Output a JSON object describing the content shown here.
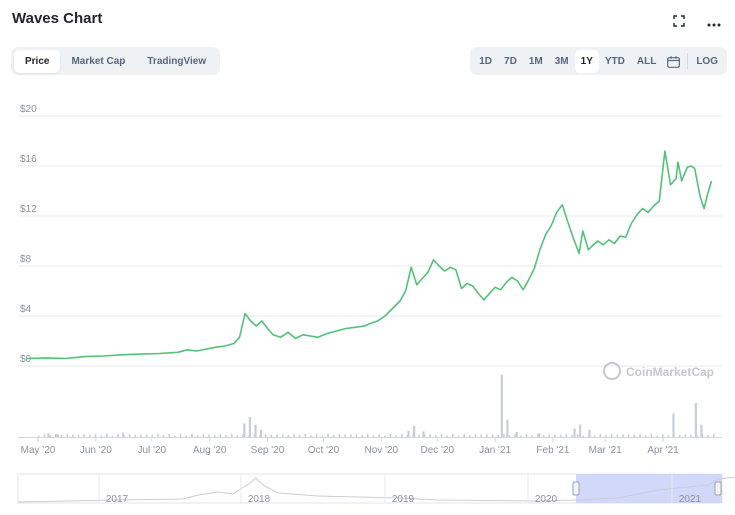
{
  "header": {
    "title": "Waves Chart",
    "expand_icon": "expand-icon",
    "more_icon": "more-icon"
  },
  "tabs": [
    {
      "label": "Price",
      "active": true
    },
    {
      "label": "Market Cap",
      "active": false
    },
    {
      "label": "TradingView",
      "active": false
    }
  ],
  "ranges": [
    {
      "label": "1D",
      "active": false
    },
    {
      "label": "7D",
      "active": false
    },
    {
      "label": "1M",
      "active": false
    },
    {
      "label": "3M",
      "active": false
    },
    {
      "label": "1Y",
      "active": true
    },
    {
      "label": "YTD",
      "active": false
    },
    {
      "label": "ALL",
      "active": false
    }
  ],
  "log_label": "LOG",
  "watermark": "CoinMarketCap",
  "colors": {
    "line": "#53c179",
    "grid": "#e6e8eb",
    "volume": "#c8cdd8",
    "brush": "#c6cef7",
    "text": "#8a919e"
  },
  "chart_data": {
    "type": "line",
    "ylabel_ticks": [
      "$0",
      "$4",
      "$8",
      "$12",
      "$16",
      "$20"
    ],
    "ylim": [
      0,
      20
    ],
    "xlim": [
      0,
      365
    ],
    "x_ticks": [
      {
        "label": "May '20",
        "x": 0
      },
      {
        "label": "Jun '20",
        "x": 31
      },
      {
        "label": "Jul '20",
        "x": 61
      },
      {
        "label": "Aug '20",
        "x": 92
      },
      {
        "label": "Sep '20",
        "x": 123
      },
      {
        "label": "Oct '20",
        "x": 153
      },
      {
        "label": "Nov '20",
        "x": 184
      },
      {
        "label": "Dec '20",
        "x": 214
      },
      {
        "label": "Jan '21",
        "x": 245
      },
      {
        "label": "Feb '21",
        "x": 276
      },
      {
        "label": "Mar '21",
        "x": 304
      },
      {
        "label": "Apr '21",
        "x": 335
      }
    ],
    "series": [
      {
        "x": [
          -6,
          5,
          15,
          25,
          35,
          45,
          55,
          65,
          75,
          80,
          85,
          90,
          95,
          100,
          105,
          108,
          111,
          114,
          117,
          120,
          123,
          126,
          130,
          134,
          138,
          142,
          146,
          150,
          155,
          160,
          165,
          170,
          175,
          178,
          182,
          186,
          190,
          194,
          197,
          200,
          203,
          206,
          209,
          212,
          215,
          218,
          221,
          224,
          227,
          230,
          233,
          236,
          239,
          242,
          245,
          248,
          251,
          254,
          257,
          260,
          263,
          266,
          269,
          272,
          275,
          278,
          281,
          284,
          287,
          290,
          292,
          295,
          297,
          300,
          303,
          306,
          309,
          312,
          315,
          318,
          321,
          324,
          327,
          330,
          333,
          336,
          339,
          342,
          343,
          345,
          346,
          348,
          350,
          352,
          355,
          357,
          359,
          361
        ],
        "y": [
          0.6,
          0.65,
          0.6,
          0.75,
          0.8,
          0.9,
          0.95,
          1.0,
          1.1,
          1.3,
          1.2,
          1.35,
          1.5,
          1.6,
          1.8,
          2.3,
          4.2,
          3.6,
          3.2,
          3.6,
          3.0,
          2.5,
          2.3,
          2.7,
          2.2,
          2.5,
          2.4,
          2.3,
          2.6,
          2.8,
          3.0,
          3.1,
          3.2,
          3.4,
          3.6,
          4.0,
          4.6,
          5.2,
          6.0,
          7.9,
          6.5,
          7.0,
          7.5,
          8.5,
          8.0,
          7.6,
          7.9,
          7.7,
          6.2,
          6.6,
          6.4,
          5.8,
          5.3,
          5.8,
          6.3,
          6.1,
          6.7,
          7.1,
          6.8,
          6.1,
          6.9,
          7.8,
          9.3,
          10.5,
          11.2,
          12.3,
          12.9,
          11.5,
          10.2,
          9.0,
          10.8,
          9.3,
          9.6,
          10.0,
          9.7,
          10.1,
          9.8,
          10.4,
          10.3,
          11.4,
          12.1,
          12.6,
          12.3,
          12.8,
          13.2,
          17.2,
          14.5,
          15.0,
          16.3,
          14.8,
          15.2,
          15.9,
          16.0,
          15.8,
          13.5,
          12.6,
          13.8,
          14.8
        ]
      }
    ],
    "volume": [
      {
        "x": 5,
        "h": 0.06
      },
      {
        "x": 10,
        "h": 0.05
      },
      {
        "x": 45,
        "h": 0.07
      },
      {
        "x": 110,
        "h": 0.22
      },
      {
        "x": 113,
        "h": 0.32
      },
      {
        "x": 116,
        "h": 0.2
      },
      {
        "x": 119,
        "h": 0.12
      },
      {
        "x": 198,
        "h": 0.1
      },
      {
        "x": 201,
        "h": 0.18
      },
      {
        "x": 206,
        "h": 0.09
      },
      {
        "x": 248,
        "h": 1.0
      },
      {
        "x": 251,
        "h": 0.28
      },
      {
        "x": 256,
        "h": 0.08
      },
      {
        "x": 268,
        "h": 0.06
      },
      {
        "x": 287,
        "h": 0.14
      },
      {
        "x": 290,
        "h": 0.2
      },
      {
        "x": 295,
        "h": 0.12
      },
      {
        "x": 340,
        "h": 0.38
      },
      {
        "x": 352,
        "h": 0.55
      },
      {
        "x": 355,
        "h": 0.2
      }
    ],
    "navigator_labels": [
      "2017",
      "2018",
      "2019",
      "2020",
      "2021"
    ]
  }
}
